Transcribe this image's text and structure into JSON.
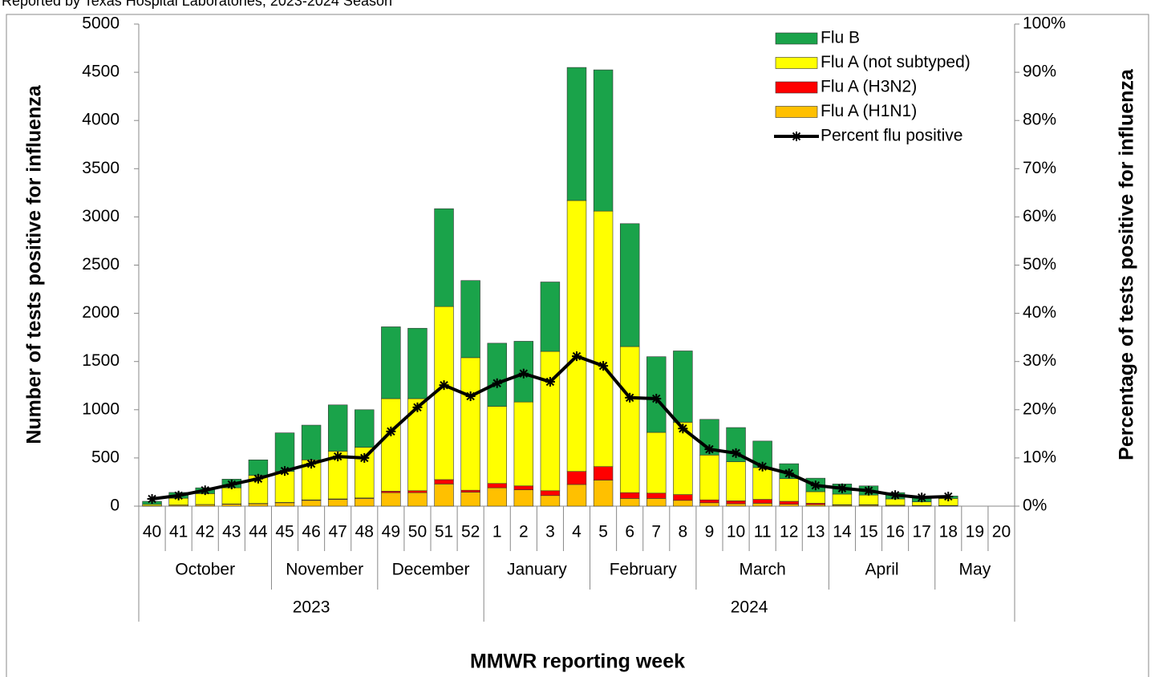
{
  "chart_data": {
    "type": "bar",
    "stacked": true,
    "subtitle": "Reported by Texas Hospital Laboratories, 2023-2024 Season",
    "x_label": "MMWR reporting week",
    "y_label": "Number of tests positive for influenza",
    "y2_label": "Percentage  of  tests  positive for influenza",
    "categories": [
      "40",
      "41",
      "42",
      "43",
      "44",
      "45",
      "46",
      "47",
      "48",
      "49",
      "50",
      "51",
      "52",
      "1",
      "2",
      "3",
      "4",
      "5",
      "6",
      "7",
      "8",
      "9",
      "10",
      "11",
      "12",
      "13",
      "14",
      "15",
      "16",
      "17",
      "18",
      "19",
      "20"
    ],
    "months": [
      "October",
      "October",
      "October",
      "October",
      "October",
      "November",
      "November",
      "November",
      "November",
      "December",
      "December",
      "December",
      "December",
      "January",
      "January",
      "January",
      "January",
      "February",
      "February",
      "February",
      "February",
      "March",
      "March",
      "March",
      "March",
      "March",
      "April",
      "April",
      "April",
      "April",
      "May",
      "May",
      "May"
    ],
    "years": [
      2023,
      2023,
      2023,
      2023,
      2023,
      2023,
      2023,
      2023,
      2023,
      2023,
      2023,
      2023,
      2023,
      2024,
      2024,
      2024,
      2024,
      2024,
      2024,
      2024,
      2024,
      2024,
      2024,
      2024,
      2024,
      2024,
      2024,
      2024,
      2024,
      2024,
      2024,
      2024,
      2024
    ],
    "series": [
      {
        "name": "Flu A (H1N1)",
        "color": "#FFC000",
        "values": [
          3,
          10,
          15,
          20,
          25,
          35,
          60,
          70,
          80,
          140,
          140,
          230,
          145,
          190,
          170,
          110,
          225,
          270,
          80,
          80,
          60,
          35,
          25,
          30,
          20,
          15,
          10,
          10,
          8,
          5,
          5,
          null,
          null
        ]
      },
      {
        "name": "Flu A (H3N2)",
        "color": "#FF0000",
        "values": [
          0,
          2,
          2,
          3,
          3,
          3,
          5,
          5,
          5,
          15,
          20,
          45,
          20,
          45,
          40,
          50,
          135,
          140,
          60,
          55,
          60,
          30,
          30,
          40,
          30,
          15,
          5,
          5,
          2,
          2,
          2,
          null,
          null
        ]
      },
      {
        "name": "Flu A (not subtyped)",
        "color": "#FFFF00",
        "values": [
          15,
          70,
          113,
          167,
          292,
          322,
          415,
          495,
          525,
          960,
          955,
          1795,
          1375,
          800,
          870,
          1445,
          2810,
          2650,
          1515,
          630,
          750,
          465,
          405,
          330,
          235,
          120,
          110,
          100,
          65,
          38,
          73,
          null,
          null
        ]
      },
      {
        "name": "Flu B",
        "color": "#1AA34A",
        "values": [
          32,
          60,
          60,
          90,
          160,
          400,
          360,
          480,
          390,
          745,
          730,
          1015,
          800,
          655,
          630,
          720,
          1380,
          1465,
          1275,
          785,
          740,
          370,
          355,
          275,
          155,
          140,
          105,
          95,
          65,
          45,
          25,
          null,
          null
        ]
      },
      {
        "name": "Percent flu positive",
        "type": "line",
        "axis": "y2",
        "color": "#000000",
        "marker": "asterisk",
        "values": [
          1.5,
          2.2,
          3.3,
          4.5,
          5.7,
          7.3,
          8.8,
          10.3,
          10,
          15.5,
          20.5,
          25.1,
          22.8,
          25.5,
          27.5,
          25.8,
          31.1,
          29.1,
          22.5,
          22.3,
          16.1,
          11.8,
          11,
          8.2,
          6.8,
          4.3,
          3.7,
          3.2,
          2.3,
          1.8,
          2,
          null,
          null
        ]
      }
    ],
    "ylim": [
      0,
      5000
    ],
    "yticks": [
      0,
      500,
      1000,
      1500,
      2000,
      2500,
      3000,
      3500,
      4000,
      4500,
      5000
    ],
    "y2lim": [
      0,
      100
    ],
    "y2ticks": [
      {
        "value": 0,
        "label": "0%"
      },
      {
        "value": 10,
        "label": "10%"
      },
      {
        "value": 20,
        "label": "20%"
      },
      {
        "value": 30,
        "label": "30%"
      },
      {
        "value": 40,
        "label": "40%"
      },
      {
        "value": 50,
        "label": "50%"
      },
      {
        "value": 60,
        "label": "60%"
      },
      {
        "value": 70,
        "label": "70%"
      },
      {
        "value": 80,
        "label": "80%"
      },
      {
        "value": 90,
        "label": "90%"
      },
      {
        "value": 100,
        "label": "100%"
      }
    ],
    "legend": "top-right",
    "grid": false
  }
}
